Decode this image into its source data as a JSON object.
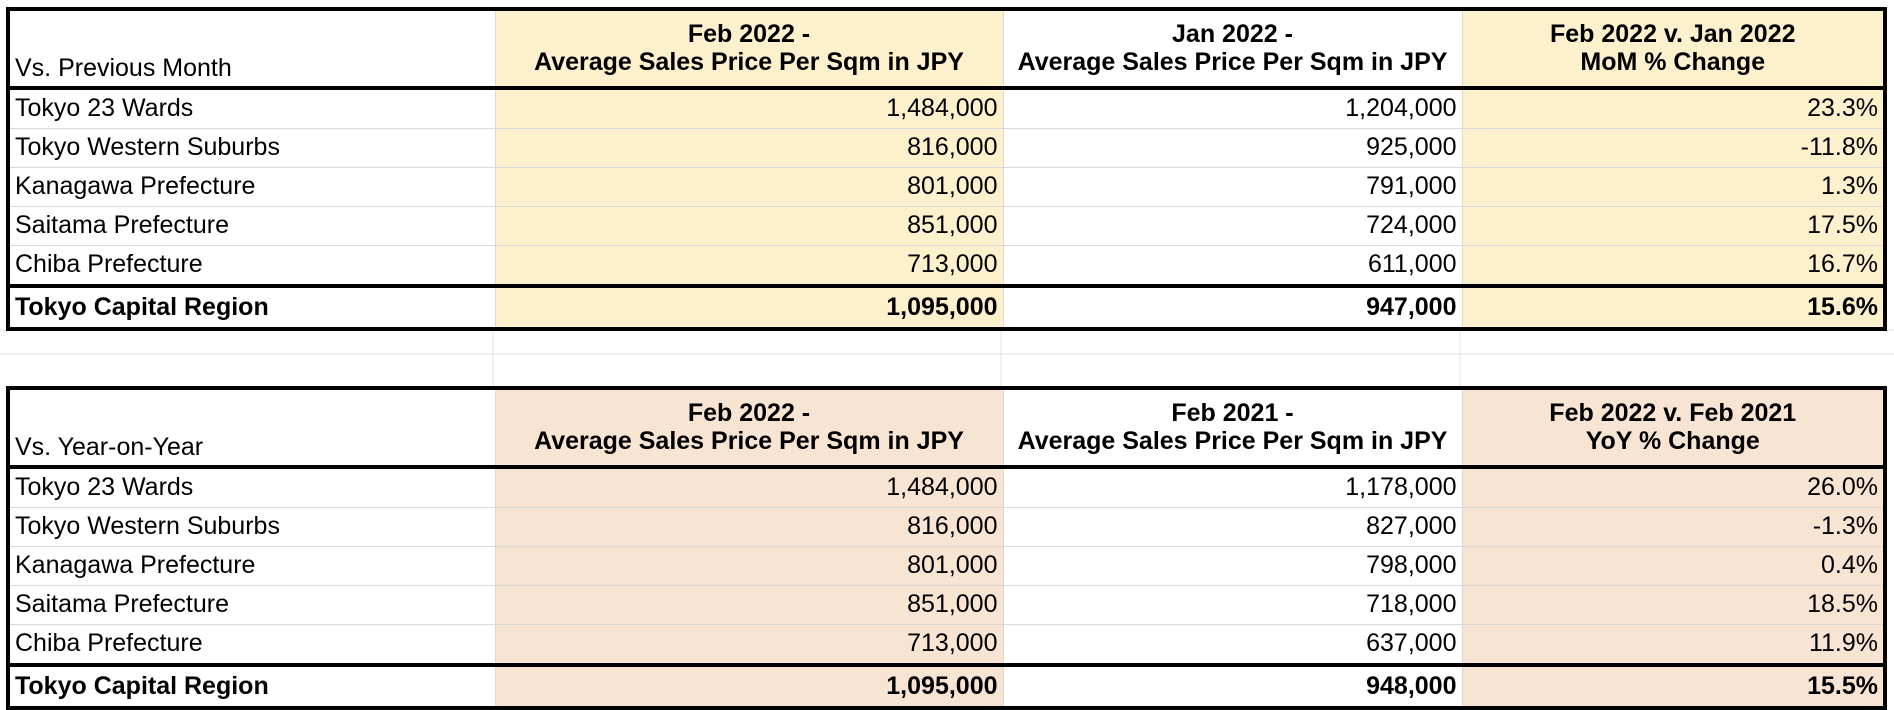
{
  "colors": {
    "mom_tint": "#fdf1cd",
    "yoy_tint": "#f8e4d3",
    "border": "#000000",
    "gridline": "#d9d9d9"
  },
  "mom": {
    "header": {
      "label": "Vs. Previous Month",
      "col_a_line1": "Feb 2022 -",
      "col_a_line2": "Average Sales Price Per Sqm in JPY",
      "col_b_line1": "Jan 2022 -",
      "col_b_line2": "Average Sales Price Per Sqm in JPY",
      "col_c_line1": "Feb 2022 v. Jan 2022",
      "col_c_line2": "MoM % Change"
    },
    "rows": [
      {
        "region": "Tokyo 23 Wards",
        "a": "1,484,000",
        "b": "1,204,000",
        "change": "23.3%"
      },
      {
        "region": "Tokyo Western Suburbs",
        "a": "816,000",
        "b": "925,000",
        "change": "-11.8%"
      },
      {
        "region": "Kanagawa Prefecture",
        "a": "801,000",
        "b": "791,000",
        "change": "1.3%"
      },
      {
        "region": "Saitama Prefecture",
        "a": "851,000",
        "b": "724,000",
        "change": "17.5%"
      },
      {
        "region": "Chiba Prefecture",
        "a": "713,000",
        "b": "611,000",
        "change": "16.7%"
      }
    ],
    "total": {
      "region": "Tokyo Capital Region",
      "a": "1,095,000",
      "b": "947,000",
      "change": "15.6%"
    }
  },
  "yoy": {
    "header": {
      "label": "Vs. Year-on-Year",
      "col_a_line1": "Feb 2022 -",
      "col_a_line2": "Average Sales Price Per Sqm in JPY",
      "col_b_line1": "Feb 2021 -",
      "col_b_line2": "Average Sales Price Per Sqm in JPY",
      "col_c_line1": "Feb 2022 v. Feb 2021",
      "col_c_line2": "YoY % Change"
    },
    "rows": [
      {
        "region": "Tokyo 23 Wards",
        "a": "1,484,000",
        "b": "1,178,000",
        "change": "26.0%"
      },
      {
        "region": "Tokyo Western Suburbs",
        "a": "816,000",
        "b": "827,000",
        "change": "-1.3%"
      },
      {
        "region": "Kanagawa Prefecture",
        "a": "801,000",
        "b": "798,000",
        "change": "0.4%"
      },
      {
        "region": "Saitama Prefecture",
        "a": "851,000",
        "b": "718,000",
        "change": "18.5%"
      },
      {
        "region": "Chiba Prefecture",
        "a": "713,000",
        "b": "637,000",
        "change": "11.9%"
      }
    ],
    "total": {
      "region": "Tokyo Capital Region",
      "a": "1,095,000",
      "b": "948,000",
      "change": "15.5%"
    }
  }
}
